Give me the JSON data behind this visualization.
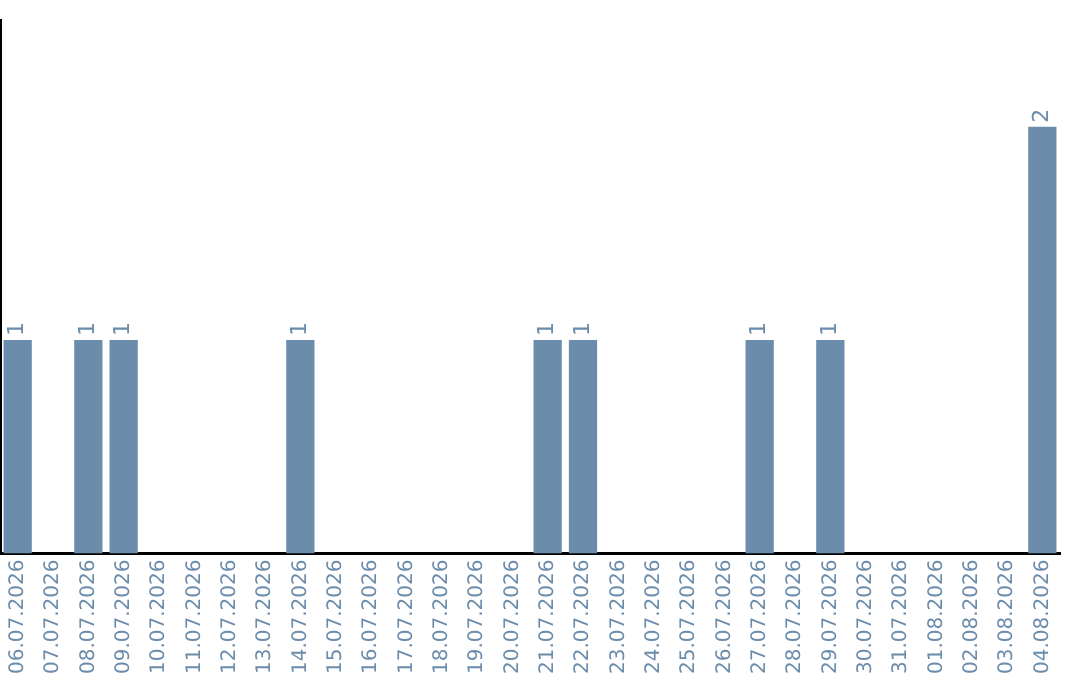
{
  "chart_data": {
    "type": "bar",
    "categories": [
      "06.07.2026",
      "07.07.2026",
      "08.07.2026",
      "09.07.2026",
      "10.07.2026",
      "11.07.2026",
      "12.07.2026",
      "13.07.2026",
      "14.07.2026",
      "15.07.2026",
      "16.07.2026",
      "17.07.2026",
      "18.07.2026",
      "19.07.2026",
      "20.07.2026",
      "21.07.2026",
      "22.07.2026",
      "23.07.2026",
      "24.07.2026",
      "25.07.2026",
      "26.07.2026",
      "27.07.2026",
      "28.07.2026",
      "29.07.2026",
      "30.07.2026",
      "31.07.2026",
      "01.08.2026",
      "02.08.2026",
      "03.08.2026",
      "04.08.2026"
    ],
    "values": [
      1,
      0,
      1,
      1,
      0,
      0,
      0,
      0,
      1,
      0,
      0,
      0,
      0,
      0,
      0,
      1,
      1,
      0,
      0,
      0,
      0,
      1,
      0,
      1,
      0,
      0,
      0,
      0,
      0,
      2
    ],
    "value_labels": [
      "1",
      null,
      "1",
      "1",
      null,
      null,
      null,
      null,
      "1",
      null,
      null,
      null,
      null,
      null,
      null,
      "1",
      "1",
      null,
      null,
      null,
      null,
      "1",
      null,
      "1",
      null,
      null,
      null,
      null,
      null,
      "2"
    ],
    "color": "#6b8cab",
    "tick_labels": "x",
    "grid": false,
    "legend": false
  }
}
